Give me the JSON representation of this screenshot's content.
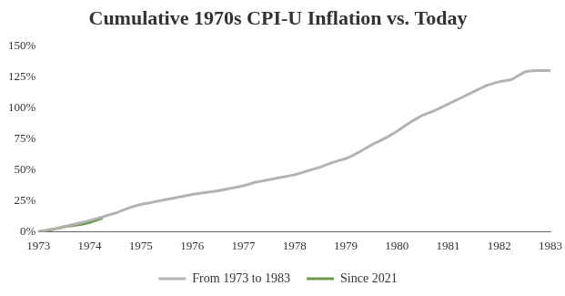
{
  "chart_data": {
    "type": "line",
    "title": "Cumulative 1970s CPI-U Inflation vs. Today",
    "x": [
      1973.0,
      1973.25,
      1973.5,
      1973.75,
      1974.0,
      1974.25,
      1974.5,
      1974.75,
      1975.0,
      1975.25,
      1975.5,
      1975.75,
      1976.0,
      1976.25,
      1976.5,
      1976.75,
      1977.0,
      1977.25,
      1977.5,
      1977.75,
      1978.0,
      1978.25,
      1978.5,
      1978.75,
      1979.0,
      1979.25,
      1979.5,
      1979.75,
      1980.0,
      1980.25,
      1980.5,
      1980.75,
      1981.0,
      1981.25,
      1981.5,
      1981.75,
      1982.0,
      1982.25,
      1982.5,
      1982.75,
      1983.0
    ],
    "series": [
      {
        "name": "From 1973 to 1983",
        "color": "#b3b3b3",
        "values": [
          0,
          2,
          4,
          6.5,
          9,
          12,
          15,
          19,
          22,
          24,
          26,
          28,
          30,
          31.5,
          33,
          35,
          37,
          40,
          42,
          44,
          46,
          49,
          52,
          56,
          59,
          64,
          70,
          75,
          81,
          88,
          94,
          98,
          103,
          108,
          113,
          118,
          121,
          123,
          129,
          130,
          130
        ]
      },
      {
        "name": "Since 2021",
        "color": "#6b9a4b",
        "values": [
          0,
          1.5,
          4,
          5.5,
          7.5,
          11,
          null,
          null,
          null,
          null,
          null,
          null,
          null,
          null,
          null,
          null,
          null,
          null,
          null,
          null,
          null,
          null,
          null,
          null,
          null,
          null,
          null,
          null,
          null,
          null,
          null,
          null,
          null,
          null,
          null,
          null,
          null,
          null,
          null,
          null,
          null
        ]
      }
    ],
    "xlim": [
      1973,
      1983
    ],
    "xticks": [
      1973,
      1974,
      1975,
      1976,
      1977,
      1978,
      1979,
      1980,
      1981,
      1982,
      1983
    ],
    "ylim": [
      0,
      150
    ],
    "yticks": [
      {
        "value": 0,
        "label": "0%"
      },
      {
        "value": 25,
        "label": "25%"
      },
      {
        "value": 50,
        "label": "50%"
      },
      {
        "value": 75,
        "label": "75%"
      },
      {
        "value": 100,
        "label": "100%"
      },
      {
        "value": 125,
        "label": "125%"
      },
      {
        "value": 150,
        "label": "150%"
      }
    ],
    "grid": false,
    "legend": "bottom"
  }
}
